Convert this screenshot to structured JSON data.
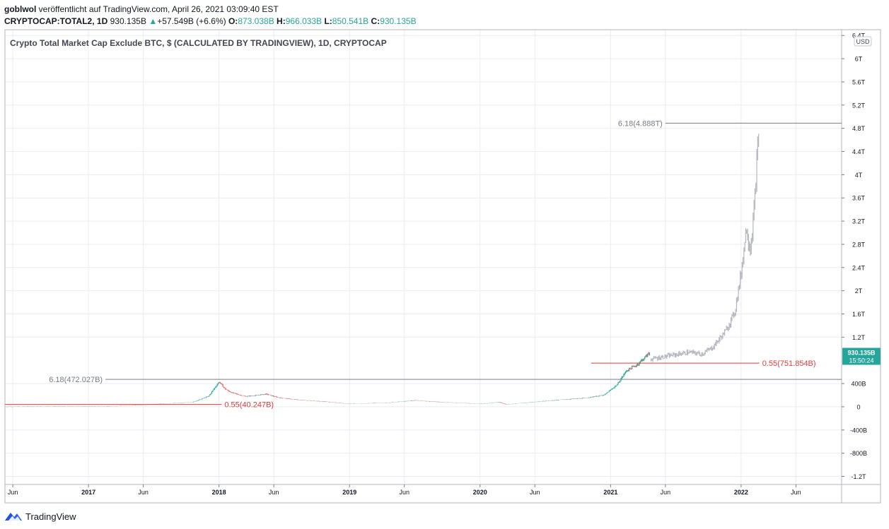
{
  "header": {
    "author": "goblwol",
    "published_text": " veröffentlicht auf TradingView.com, April 26, 2021 03:09:40 EST",
    "symbol": "CRYPTOCAP:TOTAL2, 1D",
    "last": "930.135B",
    "change_arrow": "▲",
    "change": "+57.549B (+6.6%)",
    "o_label": "O:",
    "o_value": "873.038B",
    "h_label": "H:",
    "h_value": "966.033B",
    "l_label": "L:",
    "l_value": "850.541B",
    "c_label": "C:",
    "c_value": "930.135B"
  },
  "footer": {
    "brand": "TradingView"
  },
  "colors": {
    "up": "#26a69a",
    "down": "#ef5350",
    "projection": "#b2b5be",
    "fib_red": "#e53935",
    "fib_gray": "#787b86",
    "grid": "#e9ecf2",
    "axis_text": "#131722"
  },
  "chart_data": {
    "type": "candlestick",
    "title": "Crypto Total Market Cap Exclude BTC, $ (CALCULATED BY TRADINGVIEW), 1D, CRYPTOCAP",
    "currency_badge": "USD",
    "ylim": [
      -1.34,
      6.5
    ],
    "y_ticks": [
      {
        "v": 6.4,
        "label": "6.4T"
      },
      {
        "v": 6.0,
        "label": "6T"
      },
      {
        "v": 5.6,
        "label": "5.6T"
      },
      {
        "v": 5.2,
        "label": "5.2T"
      },
      {
        "v": 4.8,
        "label": "4.8T"
      },
      {
        "v": 4.4,
        "label": "4.4T"
      },
      {
        "v": 4.0,
        "label": "4T"
      },
      {
        "v": 3.6,
        "label": "3.6T"
      },
      {
        "v": 3.2,
        "label": "3.2T"
      },
      {
        "v": 2.8,
        "label": "2.8T"
      },
      {
        "v": 2.4,
        "label": "2.4T"
      },
      {
        "v": 2.0,
        "label": "2T"
      },
      {
        "v": 1.6,
        "label": "1.6T"
      },
      {
        "v": 1.2,
        "label": "1.2T"
      },
      {
        "v": 0.4,
        "label": "400B"
      },
      {
        "v": 0.0,
        "label": "0"
      },
      {
        "v": -0.4,
        "label": "-400B"
      },
      {
        "v": -0.8,
        "label": "-800B"
      },
      {
        "v": -1.2,
        "label": "-1.2T"
      }
    ],
    "x_ticks": [
      {
        "t": 2016.42,
        "label": "Jun"
      },
      {
        "t": 2017.0,
        "label": "2017"
      },
      {
        "t": 2017.42,
        "label": "Jun"
      },
      {
        "t": 2018.0,
        "label": "2018"
      },
      {
        "t": 2018.42,
        "label": "Jun"
      },
      {
        "t": 2019.0,
        "label": "2019"
      },
      {
        "t": 2019.42,
        "label": "Jun"
      },
      {
        "t": 2020.0,
        "label": "2020"
      },
      {
        "t": 2020.42,
        "label": "Jun"
      },
      {
        "t": 2021.0,
        "label": "2021"
      },
      {
        "t": 2021.42,
        "label": "Jun"
      },
      {
        "t": 2022.0,
        "label": "2022"
      },
      {
        "t": 2022.42,
        "label": "Jun"
      }
    ],
    "xlim": [
      2016.36,
      2022.77
    ],
    "price_series": [
      {
        "t": 2016.36,
        "v": 0.0
      },
      {
        "t": 2016.9,
        "v": 0.005
      },
      {
        "t": 2017.2,
        "v": 0.01
      },
      {
        "t": 2017.4,
        "v": 0.03
      },
      {
        "t": 2017.55,
        "v": 0.05
      },
      {
        "t": 2017.8,
        "v": 0.08
      },
      {
        "t": 2017.92,
        "v": 0.18
      },
      {
        "t": 2018.0,
        "v": 0.43
      },
      {
        "t": 2018.05,
        "v": 0.3
      },
      {
        "t": 2018.1,
        "v": 0.24
      },
      {
        "t": 2018.2,
        "v": 0.18
      },
      {
        "t": 2018.3,
        "v": 0.2
      },
      {
        "t": 2018.36,
        "v": 0.22
      },
      {
        "t": 2018.45,
        "v": 0.16
      },
      {
        "t": 2018.6,
        "v": 0.12
      },
      {
        "t": 2018.8,
        "v": 0.09
      },
      {
        "t": 2019.0,
        "v": 0.05
      },
      {
        "t": 2019.3,
        "v": 0.07
      },
      {
        "t": 2019.5,
        "v": 0.11
      },
      {
        "t": 2019.7,
        "v": 0.08
      },
      {
        "t": 2020.0,
        "v": 0.05
      },
      {
        "t": 2020.15,
        "v": 0.08
      },
      {
        "t": 2020.2,
        "v": 0.04
      },
      {
        "t": 2020.5,
        "v": 0.1
      },
      {
        "t": 2020.8,
        "v": 0.15
      },
      {
        "t": 2020.95,
        "v": 0.2
      },
      {
        "t": 2021.05,
        "v": 0.38
      },
      {
        "t": 2021.12,
        "v": 0.62
      },
      {
        "t": 2021.2,
        "v": 0.72
      },
      {
        "t": 2021.3,
        "v": 0.93
      }
    ],
    "projection_series": [
      {
        "t": 2021.31,
        "v": 0.82
      },
      {
        "t": 2021.4,
        "v": 0.86
      },
      {
        "t": 2021.5,
        "v": 0.9
      },
      {
        "t": 2021.6,
        "v": 0.94
      },
      {
        "t": 2021.7,
        "v": 0.91
      },
      {
        "t": 2021.78,
        "v": 1.02
      },
      {
        "t": 2021.88,
        "v": 1.3
      },
      {
        "t": 2021.95,
        "v": 1.62
      },
      {
        "t": 2022.0,
        "v": 2.3
      },
      {
        "t": 2022.04,
        "v": 3.1
      },
      {
        "t": 2022.07,
        "v": 2.7
      },
      {
        "t": 2022.1,
        "v": 3.4
      },
      {
        "t": 2022.12,
        "v": 4.2
      },
      {
        "t": 2022.14,
        "v": 4.88
      }
    ],
    "annotations": [
      {
        "label": "6.18(4.888T)",
        "v": 4.888,
        "t_start": 2021.42,
        "t_end": 2022.77,
        "color": "gray"
      },
      {
        "label": "0.55(751.854B)",
        "v": 0.751854,
        "t_start": 2020.85,
        "t_end": 2022.14,
        "color": "red"
      },
      {
        "label": "6.18(472.027B)",
        "v": 0.472027,
        "t_start": 2017.13,
        "t_end": 2022.77,
        "color": "gray"
      },
      {
        "label": "0.55(40.247B)",
        "v": 0.040247,
        "t_start": 2016.36,
        "t_end": 2018.02,
        "color": "red"
      }
    ],
    "last_price": {
      "value": 0.930135,
      "label": "930.135B",
      "countdown": "15:50:24"
    }
  }
}
